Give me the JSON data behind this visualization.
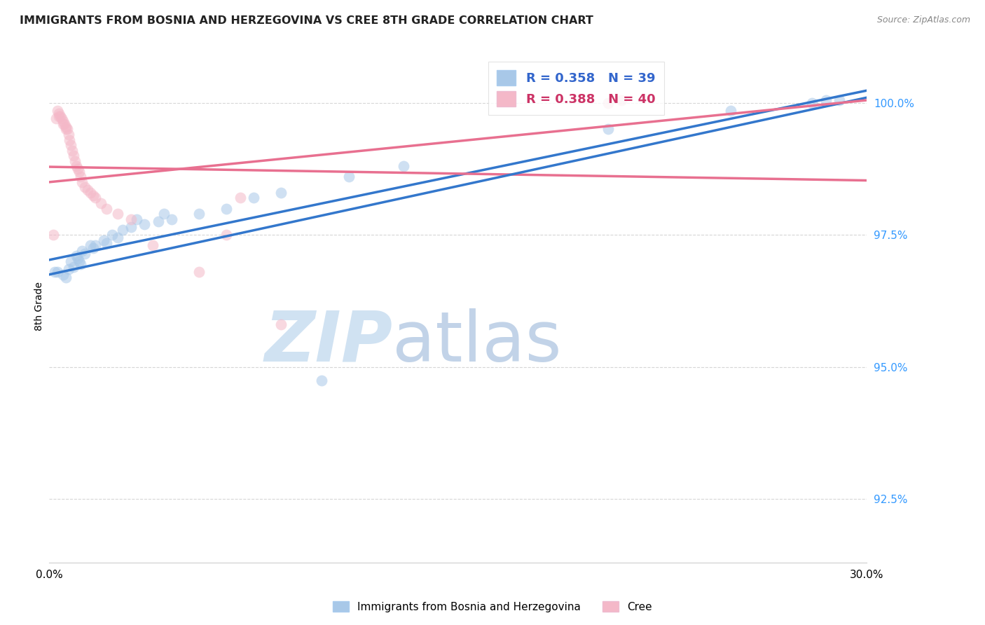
{
  "title": "IMMIGRANTS FROM BOSNIA AND HERZEGOVINA VS CREE 8TH GRADE CORRELATION CHART",
  "source": "Source: ZipAtlas.com",
  "ylabel": "8th Grade",
  "y_ticks": [
    92.5,
    95.0,
    97.5,
    100.0
  ],
  "y_tick_labels": [
    "92.5%",
    "95.0%",
    "97.5%",
    "100.0%"
  ],
  "xlim": [
    0.0,
    30.0
  ],
  "ylim": [
    91.3,
    101.0
  ],
  "blue_R": 0.358,
  "blue_N": 39,
  "pink_R": 0.388,
  "pink_N": 40,
  "blue_color": "#a8c8e8",
  "pink_color": "#f4b8c8",
  "blue_line_color": "#3377cc",
  "pink_line_color": "#e87090",
  "legend_blue_label": "Immigrants from Bosnia and Herzegovina",
  "legend_pink_label": "Cree",
  "watermark_zip": "ZIP",
  "watermark_atlas": "atlas",
  "blue_dots_x": [
    0.2,
    0.3,
    0.5,
    0.6,
    0.7,
    0.8,
    0.9,
    1.0,
    1.05,
    1.1,
    1.15,
    1.2,
    1.3,
    1.5,
    1.6,
    1.7,
    2.0,
    2.1,
    2.3,
    2.5,
    2.7,
    3.0,
    3.5,
    4.0,
    4.5,
    5.5,
    6.5,
    7.5,
    8.5,
    10.0,
    13.0,
    20.5,
    25.0,
    28.0,
    28.5,
    29.0,
    11.0,
    3.2,
    4.2
  ],
  "blue_dots_y": [
    96.8,
    96.8,
    96.75,
    96.7,
    96.85,
    97.0,
    96.9,
    97.1,
    97.05,
    97.0,
    96.95,
    97.2,
    97.15,
    97.3,
    97.25,
    97.3,
    97.4,
    97.35,
    97.5,
    97.45,
    97.6,
    97.65,
    97.7,
    97.75,
    97.8,
    97.9,
    98.0,
    98.2,
    98.3,
    94.75,
    98.8,
    99.5,
    99.85,
    100.0,
    100.05,
    100.05,
    98.6,
    97.8,
    97.9
  ],
  "pink_dots_x": [
    0.15,
    0.3,
    0.35,
    0.4,
    0.45,
    0.5,
    0.55,
    0.6,
    0.65,
    0.7,
    0.75,
    0.8,
    0.85,
    0.9,
    0.95,
    1.0,
    1.05,
    1.1,
    1.15,
    1.2,
    1.3,
    1.4,
    1.5,
    1.6,
    1.7,
    1.9,
    2.1,
    2.5,
    3.0,
    3.8,
    5.5,
    6.5,
    7.0,
    8.5,
    0.25,
    0.35,
    0.5,
    0.6,
    20.5,
    21.0
  ],
  "pink_dots_y": [
    97.5,
    99.85,
    99.8,
    99.75,
    99.7,
    99.65,
    99.6,
    99.55,
    99.5,
    99.4,
    99.3,
    99.2,
    99.1,
    99.0,
    98.9,
    98.8,
    98.75,
    98.7,
    98.6,
    98.5,
    98.4,
    98.35,
    98.3,
    98.25,
    98.2,
    98.1,
    98.0,
    97.9,
    97.8,
    97.3,
    96.8,
    97.5,
    98.2,
    95.8,
    99.7,
    99.75,
    99.6,
    99.5,
    100.0,
    100.05
  ]
}
